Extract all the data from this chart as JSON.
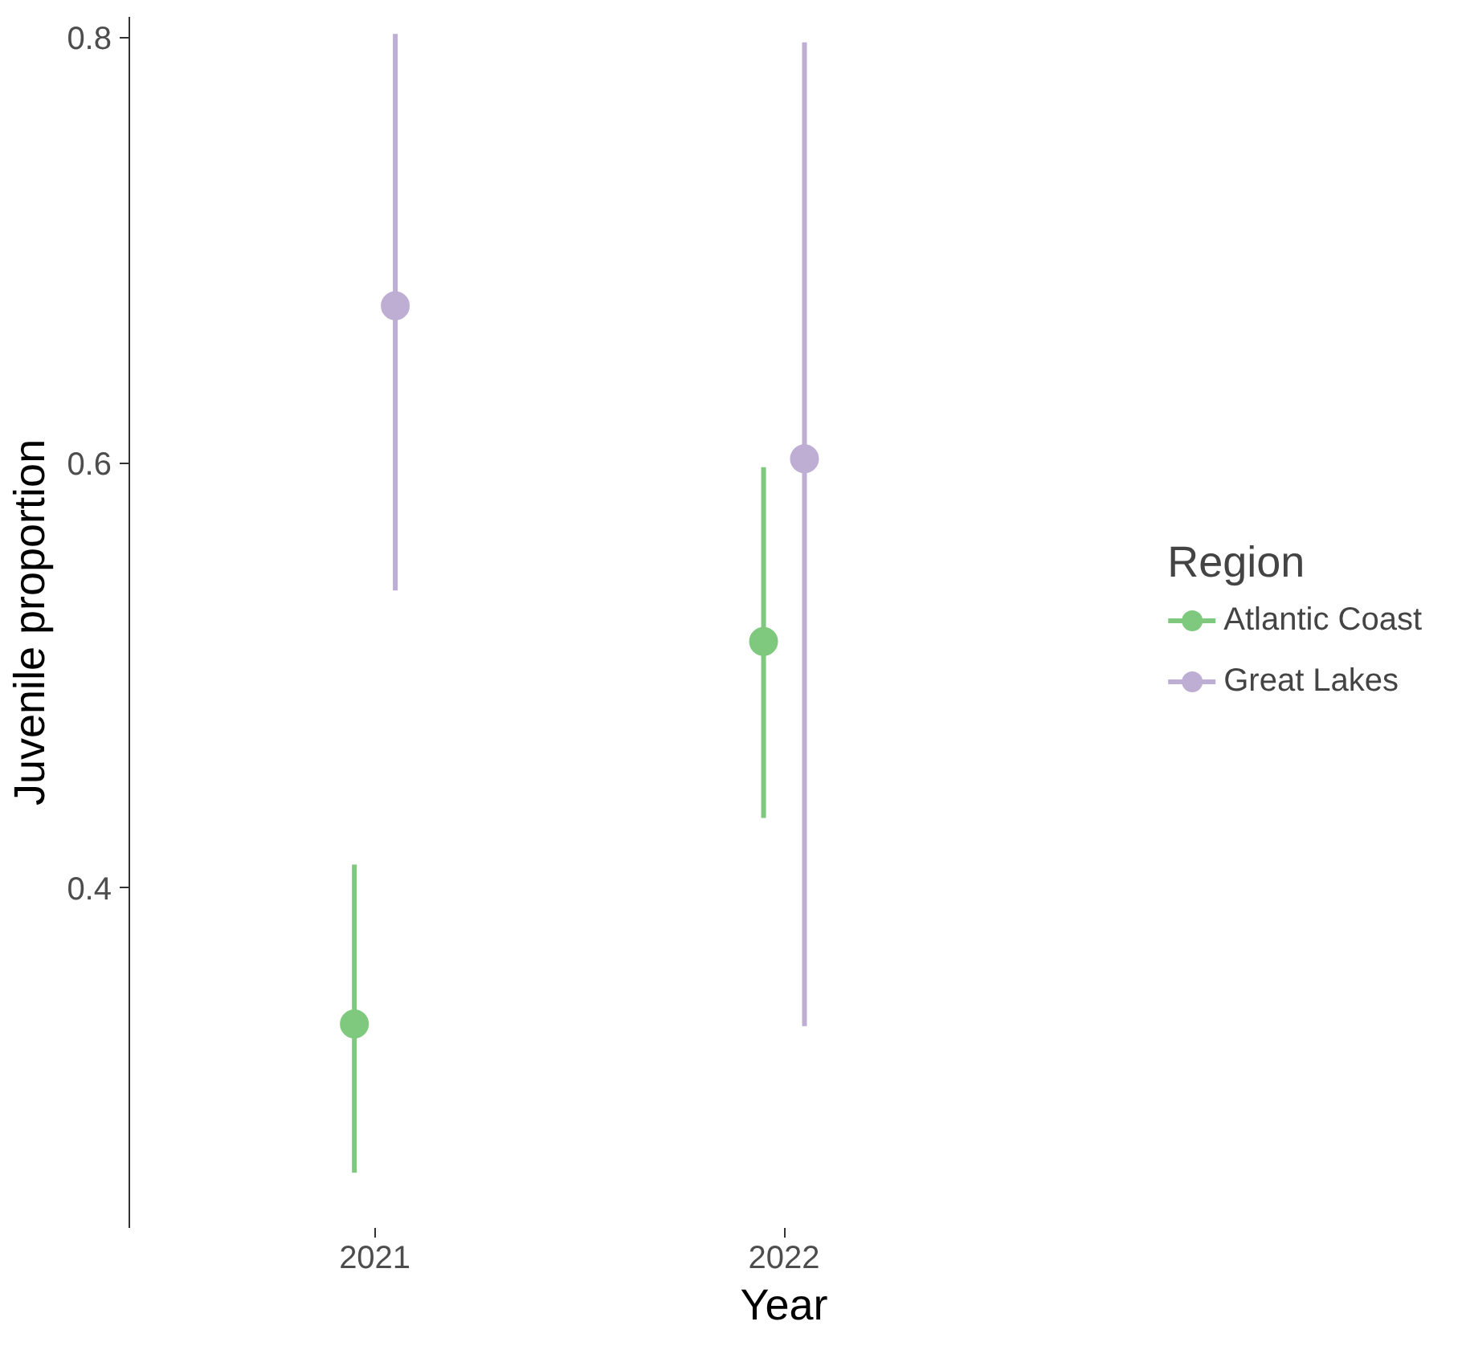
{
  "chart_data": {
    "type": "scatter",
    "xlabel": "Year",
    "ylabel": "Juvenile proportion",
    "legend_title": "Region",
    "categories": [
      "2021",
      "2022"
    ],
    "series": [
      {
        "name": "Atlantic Coast",
        "color": "#7fc97f",
        "values": [
          0.336,
          0.516
        ],
        "errors": [
          [
            0.266,
            0.411
          ],
          [
            0.433,
            0.598
          ]
        ]
      },
      {
        "name": "Great Lakes",
        "color": "#beaed4",
        "values": [
          0.674,
          0.602
        ],
        "errors": [
          [
            0.54,
            0.802
          ],
          [
            0.335,
            0.798
          ]
        ]
      }
    ],
    "ylim": [
      0.24,
      0.81
    ],
    "yticks": [
      0.4,
      0.6,
      0.8
    ],
    "grid": false,
    "legend": "right",
    "marker": "circle"
  }
}
